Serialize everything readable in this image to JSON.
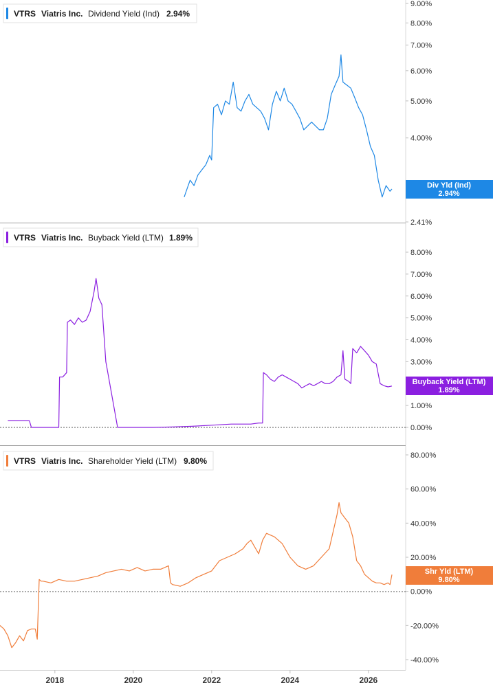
{
  "panels": [
    {
      "id": "dividend",
      "ticker": "VTRS",
      "company": "Viatris Inc.",
      "metric": "Dividend Yield (Ind)",
      "value": "2.94%",
      "color": "#1e88e5",
      "badge_label": "Div Yld (Ind)",
      "badge_value": "2.94%",
      "badge_text_color": "#ffffff"
    },
    {
      "id": "buyback",
      "ticker": "VTRS",
      "company": "Viatris Inc.",
      "metric": "Buyback Yield (LTM)",
      "value": "1.89%",
      "color": "#8b1fe0",
      "badge_label": "Buyback Yield (LTM)",
      "badge_value": "1.89%",
      "badge_text_color": "#ffffff"
    },
    {
      "id": "shareholder",
      "ticker": "VTRS",
      "company": "Viatris Inc.",
      "metric": "Shareholder Yield (LTM)",
      "value": "9.80%",
      "color": "#f07d3a",
      "badge_label": "Shr Yld (LTM)",
      "badge_value": "9.80%",
      "badge_text_color": "#ffffff"
    }
  ],
  "chart_data": [
    {
      "type": "line",
      "title": "VTRS Viatris Inc. Dividend Yield (Ind) 2.94%",
      "scale": "log",
      "ylim": [
        2.41,
        9.0
      ],
      "y_ticks": [
        "9.00%",
        "8.00%",
        "7.00%",
        "6.00%",
        "5.00%",
        "4.00%",
        "3.00%",
        "2.41%"
      ],
      "y_tick_values": [
        9,
        8,
        7,
        6,
        5,
        4,
        3,
        2.41
      ],
      "series": [
        {
          "x": [
            2021.3,
            2021.35,
            2021.45,
            2021.55,
            2021.65,
            2021.75,
            2021.85,
            2021.95,
            2022.0,
            2022.05,
            2022.15,
            2022.25,
            2022.35,
            2022.45,
            2022.55,
            2022.65,
            2022.75,
            2022.85,
            2022.95,
            2023.05,
            2023.15,
            2023.25,
            2023.35,
            2023.45,
            2023.55,
            2023.65,
            2023.75,
            2023.85,
            2023.95,
            2024.05,
            2024.15,
            2024.25,
            2024.35,
            2024.45,
            2024.55,
            2024.65,
            2024.75,
            2024.85,
            2024.95,
            2025.05,
            2025.15,
            2025.25,
            2025.3,
            2025.35,
            2025.45,
            2025.55,
            2025.65,
            2025.75,
            2025.85,
            2025.95,
            2026.05,
            2026.15,
            2026.25,
            2026.35,
            2026.45,
            2026.55,
            2026.6
          ],
          "y": [
            2.8,
            2.9,
            3.1,
            3.0,
            3.2,
            3.3,
            3.4,
            3.6,
            3.5,
            4.8,
            4.9,
            4.6,
            5.0,
            4.9,
            5.6,
            4.8,
            4.7,
            5.0,
            5.2,
            4.9,
            4.8,
            4.7,
            4.5,
            4.2,
            4.9,
            5.3,
            5.0,
            5.4,
            5.0,
            4.9,
            4.7,
            4.5,
            4.2,
            4.3,
            4.4,
            4.3,
            4.2,
            4.2,
            4.5,
            5.2,
            5.5,
            5.8,
            6.6,
            5.6,
            5.5,
            5.4,
            5.1,
            4.8,
            4.6,
            4.2,
            3.8,
            3.6,
            3.1,
            2.8,
            3.0,
            2.9,
            2.94
          ]
        }
      ]
    },
    {
      "type": "line",
      "title": "VTRS Viatris Inc. Buyback Yield (LTM) 1.89%",
      "ylim": [
        0,
        9
      ],
      "y_ticks": [
        "8.00%",
        "7.00%",
        "6.00%",
        "5.00%",
        "4.00%",
        "3.00%",
        "1.00%",
        "0.00%"
      ],
      "y_tick_values": [
        8,
        7,
        6,
        5,
        4,
        3,
        1,
        0
      ],
      "series": [
        {
          "x": [
            2016.8,
            2017.2,
            2017.35,
            2017.4,
            2017.6,
            2017.9,
            2018.1,
            2018.12,
            2018.2,
            2018.3,
            2018.32,
            2018.4,
            2018.5,
            2018.6,
            2018.7,
            2018.8,
            2018.9,
            2019.0,
            2019.05,
            2019.1,
            2019.12,
            2019.2,
            2019.3,
            2019.32,
            2019.6,
            2020.0,
            2020.5,
            2021.0,
            2021.5,
            2022.0,
            2022.5,
            2023.0,
            2023.2,
            2023.3,
            2023.32,
            2023.4,
            2023.5,
            2023.6,
            2023.7,
            2023.8,
            2023.9,
            2024.0,
            2024.1,
            2024.2,
            2024.3,
            2024.4,
            2024.5,
            2024.6,
            2024.7,
            2024.8,
            2024.9,
            2025.0,
            2025.1,
            2025.2,
            2025.3,
            2025.35,
            2025.4,
            2025.5,
            2025.55,
            2025.6,
            2025.7,
            2025.8,
            2025.9,
            2026.0,
            2026.1,
            2026.2,
            2026.3,
            2026.4,
            2026.5,
            2026.6
          ],
          "y": [
            0.3,
            0.3,
            0.3,
            0.0,
            0.0,
            0.0,
            0.0,
            2.3,
            2.3,
            2.5,
            4.8,
            4.9,
            4.7,
            5.0,
            4.8,
            4.9,
            5.3,
            6.2,
            6.8,
            6.2,
            5.9,
            5.6,
            3.0,
            2.8,
            0.0,
            0.0,
            0.0,
            0.02,
            0.05,
            0.1,
            0.15,
            0.15,
            0.2,
            0.2,
            2.5,
            2.4,
            2.2,
            2.1,
            2.3,
            2.4,
            2.3,
            2.2,
            2.1,
            2.0,
            1.8,
            1.9,
            2.0,
            1.9,
            2.0,
            2.1,
            2.0,
            2.0,
            2.1,
            2.3,
            2.4,
            3.5,
            2.2,
            2.1,
            2.0,
            3.6,
            3.4,
            3.7,
            3.5,
            3.3,
            3.0,
            2.9,
            2.0,
            1.9,
            1.85,
            1.89
          ]
        }
      ]
    },
    {
      "type": "line",
      "title": "VTRS Viatris Inc. Shareholder Yield (LTM) 9.80%",
      "ylim": [
        -40,
        80
      ],
      "y_ticks": [
        "80.00%",
        "60.00%",
        "40.00%",
        "20.00%",
        "0.00%",
        "-20.00%",
        "-40.00%"
      ],
      "y_tick_values": [
        80,
        60,
        40,
        20,
        0,
        -20,
        -40
      ],
      "x_ticks": [
        "2018",
        "2020",
        "2022",
        "2024",
        "2026"
      ],
      "x_tick_values": [
        2018,
        2020,
        2022,
        2024,
        2026
      ],
      "xlim": [
        2016.6,
        2026.95
      ],
      "series": [
        {
          "x": [
            2016.6,
            2016.7,
            2016.8,
            2016.9,
            2017.0,
            2017.1,
            2017.2,
            2017.3,
            2017.4,
            2017.5,
            2017.55,
            2017.6,
            2017.65,
            2017.7,
            2017.9,
            2018.1,
            2018.3,
            2018.5,
            2018.7,
            2018.9,
            2019.1,
            2019.3,
            2019.5,
            2019.7,
            2019.9,
            2020.1,
            2020.3,
            2020.5,
            2020.7,
            2020.9,
            2020.95,
            2021.0,
            2021.2,
            2021.4,
            2021.6,
            2021.8,
            2022.0,
            2022.2,
            2022.4,
            2022.6,
            2022.8,
            2022.9,
            2023.0,
            2023.2,
            2023.3,
            2023.4,
            2023.5,
            2023.6,
            2023.8,
            2024.0,
            2024.2,
            2024.4,
            2024.6,
            2024.8,
            2025.0,
            2025.1,
            2025.2,
            2025.25,
            2025.3,
            2025.4,
            2025.5,
            2025.6,
            2025.7,
            2025.8,
            2025.9,
            2026.0,
            2026.1,
            2026.2,
            2026.3,
            2026.4,
            2026.5,
            2026.55,
            2026.6
          ],
          "y": [
            -20,
            -22,
            -26,
            -33,
            -30,
            -26,
            -29,
            -23,
            -22,
            -22,
            -28,
            7,
            6,
            6,
            5,
            7,
            6,
            6,
            7,
            8,
            9,
            11,
            12,
            13,
            12,
            14,
            12,
            13,
            13,
            15,
            5,
            4,
            3,
            5,
            8,
            10,
            12,
            18,
            20,
            22,
            25,
            28,
            30,
            22,
            30,
            34,
            33,
            32,
            28,
            20,
            15,
            13,
            15,
            20,
            25,
            35,
            45,
            52,
            46,
            43,
            40,
            32,
            18,
            15,
            10,
            8,
            6,
            5,
            5,
            4,
            5,
            4,
            9.8
          ]
        }
      ]
    }
  ]
}
